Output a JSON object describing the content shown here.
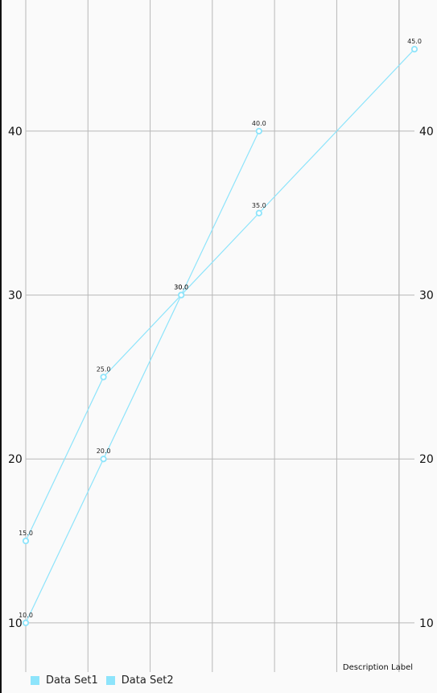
{
  "chart_data": {
    "type": "line",
    "description_label": "Description Label",
    "x_range": [
      0,
      5
    ],
    "y_range": [
      7,
      48
    ],
    "grid": true,
    "axis_ticks": [
      10,
      20,
      30,
      40
    ],
    "series": [
      {
        "name": "Data Set1",
        "color": "#8de4fb",
        "points": [
          {
            "x": 0,
            "y": 10,
            "label": "10.0"
          },
          {
            "x": 1,
            "y": 20,
            "label": "20.0"
          },
          {
            "x": 2,
            "y": 30,
            "label": "30.0"
          },
          {
            "x": 3,
            "y": 40,
            "label": "40.0"
          }
        ]
      },
      {
        "name": "Data Set2",
        "color": "#8de4fb",
        "points": [
          {
            "x": 0,
            "y": 15,
            "label": "15.0"
          },
          {
            "x": 1,
            "y": 25,
            "label": "25.0"
          },
          {
            "x": 2,
            "y": 30,
            "label": "30.0"
          },
          {
            "x": 3,
            "y": 35,
            "label": "35.0"
          },
          {
            "x": 5,
            "y": 45,
            "label": "45.0"
          }
        ]
      }
    ]
  }
}
